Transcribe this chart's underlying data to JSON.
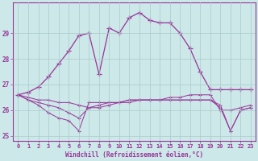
{
  "xlabel": "Windchill (Refroidissement éolien,°C)",
  "hours": [
    0,
    1,
    2,
    3,
    4,
    5,
    6,
    7,
    8,
    9,
    10,
    11,
    12,
    13,
    14,
    15,
    16,
    17,
    18,
    19,
    20,
    21,
    22,
    23
  ],
  "series": {
    "temp": [
      26.6,
      26.7,
      26.9,
      27.3,
      27.8,
      28.3,
      28.9,
      29.0,
      27.4,
      29.2,
      29.0,
      29.6,
      29.8,
      29.5,
      29.4,
      29.4,
      29.0,
      28.4,
      27.5,
      26.8,
      26.8,
      26.8,
      26.8,
      26.8
    ],
    "windchill1": [
      26.6,
      26.5,
      26.4,
      26.4,
      26.3,
      26.3,
      26.2,
      26.1,
      26.1,
      26.2,
      26.3,
      26.3,
      26.4,
      26.4,
      26.4,
      26.5,
      26.5,
      26.6,
      26.6,
      26.6,
      26.0,
      26.0,
      26.1,
      26.2
    ],
    "windchill2": [
      26.6,
      26.4,
      26.3,
      26.2,
      26.1,
      25.9,
      25.7,
      26.1,
      26.2,
      26.3,
      26.3,
      26.4,
      26.4,
      26.4,
      26.4,
      26.4,
      26.4,
      26.4,
      26.4,
      26.4,
      26.2,
      25.2,
      26.0,
      26.1
    ],
    "windchill3": [
      26.6,
      26.4,
      26.2,
      25.9,
      25.7,
      25.6,
      25.2,
      26.3,
      26.3,
      26.3,
      26.3,
      26.4,
      26.4,
      26.4,
      26.4,
      26.4,
      26.4,
      26.4,
      26.4,
      26.4,
      26.1,
      25.2,
      26.0,
      26.1
    ]
  },
  "line_color": "#993399",
  "bg_color": "#cce8e8",
  "grid_color": "#aacaca",
  "ylim": [
    24.8,
    30.2
  ],
  "yticks": [
    25,
    26,
    27,
    28,
    29
  ],
  "xticks": [
    0,
    1,
    2,
    3,
    4,
    5,
    6,
    7,
    8,
    9,
    10,
    11,
    12,
    13,
    14,
    15,
    16,
    17,
    18,
    19,
    20,
    21,
    22,
    23
  ]
}
